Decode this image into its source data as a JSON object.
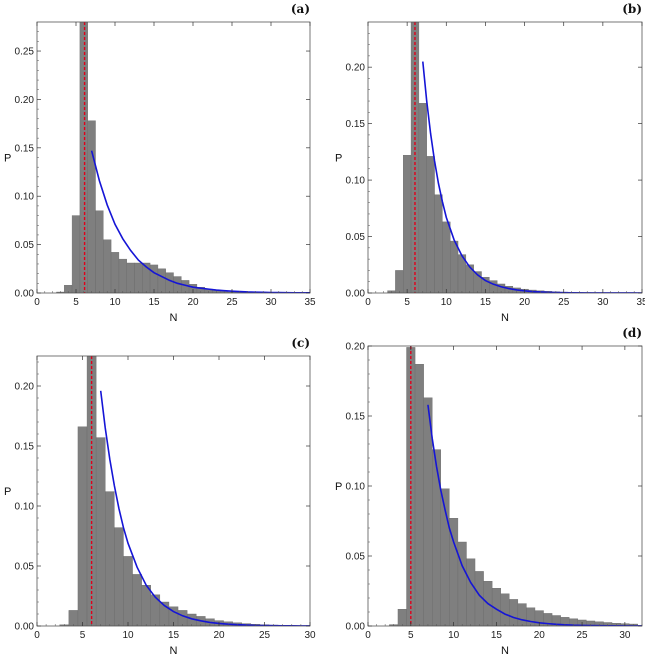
{
  "chart_data": [
    {
      "panel": "(a)",
      "type": "bar",
      "xlabel": "N",
      "ylabel": "P",
      "xlim": [
        0,
        35
      ],
      "ylim": [
        0,
        0.28
      ],
      "xticks": [
        0,
        5,
        10,
        15,
        20,
        25,
        30,
        35
      ],
      "xtick_labels": [
        "0",
        "5",
        "10",
        "15",
        "20",
        "25",
        "30",
        "35"
      ],
      "yticks": [
        0.0,
        0.05,
        0.1,
        0.15,
        0.2,
        0.25
      ],
      "ytick_labels": [
        "0.00",
        "0.05",
        "0.10",
        "0.15",
        "0.20",
        "0.25"
      ],
      "histogram": {
        "bin_width": 1,
        "bin_centers": [
          3,
          4,
          5,
          6,
          7,
          8,
          9,
          10,
          11,
          12,
          13,
          14,
          15,
          16,
          17,
          18,
          19,
          20,
          21,
          22,
          23,
          24,
          25,
          26,
          27,
          28,
          29,
          30,
          31,
          32,
          33,
          34
        ],
        "values": [
          0.001,
          0.008,
          0.08,
          0.28,
          0.178,
          0.085,
          0.055,
          0.042,
          0.035,
          0.031,
          0.031,
          0.031,
          0.029,
          0.025,
          0.021,
          0.017,
          0.013,
          0.009,
          0.006,
          0.004,
          0.003,
          0.002,
          0.001,
          0.001,
          0.0005,
          0.0003,
          0.0002,
          0.0001,
          0.0001,
          0.0,
          0.0,
          0.0
        ]
      },
      "curve": {
        "x": [
          7,
          8,
          9,
          10,
          11,
          12,
          13,
          14,
          15,
          16,
          17,
          18,
          19,
          20,
          21,
          22,
          23,
          24,
          25,
          26,
          27,
          28,
          29,
          30,
          31,
          32,
          33,
          34,
          35
        ],
        "y": [
          0.147,
          0.116,
          0.091,
          0.071,
          0.056,
          0.044,
          0.034,
          0.027,
          0.021,
          0.017,
          0.013,
          0.01,
          0.008,
          0.006,
          0.005,
          0.004,
          0.003,
          0.0024,
          0.0019,
          0.0015,
          0.0011,
          0.0009,
          0.0007,
          0.0005,
          0.0004,
          0.0003,
          0.00025,
          0.0002,
          0.00015
        ],
        "color": "#1515d6"
      },
      "vline": {
        "x": 6.1,
        "color": "#e0001b"
      }
    },
    {
      "panel": "(b)",
      "type": "bar",
      "xlabel": "N",
      "ylabel": "P",
      "xlim": [
        0,
        35
      ],
      "ylim": [
        0,
        0.24
      ],
      "xticks": [
        0,
        5,
        10,
        15,
        20,
        25,
        30,
        35
      ],
      "xtick_labels": [
        "0",
        "5",
        "10",
        "15",
        "20",
        "25",
        "30",
        "35"
      ],
      "yticks": [
        0.0,
        0.05,
        0.1,
        0.15,
        0.2
      ],
      "ytick_labels": [
        "0.00",
        "0.05",
        "0.10",
        "0.15",
        "0.20"
      ],
      "histogram": {
        "bin_width": 1,
        "bin_centers": [
          3,
          4,
          5,
          6,
          7,
          8,
          9,
          10,
          11,
          12,
          13,
          14,
          15,
          16,
          17,
          18,
          19,
          20,
          21,
          22,
          23,
          24,
          25,
          26,
          27,
          28,
          29,
          30,
          31,
          32,
          33,
          34
        ],
        "values": [
          0.002,
          0.02,
          0.122,
          0.24,
          0.168,
          0.121,
          0.087,
          0.063,
          0.046,
          0.034,
          0.025,
          0.019,
          0.014,
          0.011,
          0.008,
          0.006,
          0.0045,
          0.0034,
          0.0026,
          0.002,
          0.0015,
          0.0011,
          0.0008,
          0.0006,
          0.0005,
          0.0004,
          0.0003,
          0.0002,
          0.0002,
          0.0001,
          0.0001,
          0.0001
        ]
      },
      "curve": {
        "x": [
          7,
          7.5,
          8,
          8.5,
          9,
          9.5,
          10,
          11,
          12,
          13,
          14,
          15,
          16,
          17,
          18,
          19,
          20,
          21,
          22,
          23,
          24,
          25,
          26,
          28,
          30,
          32,
          35
        ],
        "y": [
          0.205,
          0.17,
          0.141,
          0.117,
          0.097,
          0.081,
          0.067,
          0.047,
          0.033,
          0.023,
          0.016,
          0.011,
          0.0078,
          0.0055,
          0.0039,
          0.0027,
          0.0019,
          0.0013,
          0.0009,
          0.0006,
          0.0004,
          0.0003,
          0.0002,
          0.0001,
          5e-05,
          3e-05,
          1e-05
        ],
        "color": "#1515d6"
      },
      "vline": {
        "x": 6.0,
        "color": "#e0001b"
      }
    },
    {
      "panel": "(c)",
      "type": "bar",
      "xlabel": "N",
      "ylabel": "P",
      "xlim": [
        0,
        30
      ],
      "ylim": [
        0,
        0.225
      ],
      "xticks": [
        0,
        5,
        10,
        15,
        20,
        25,
        30
      ],
      "xtick_labels": [
        "0",
        "5",
        "10",
        "15",
        "20",
        "25",
        "30"
      ],
      "yticks": [
        0.0,
        0.05,
        0.1,
        0.15,
        0.2
      ],
      "ytick_labels": [
        "0.00",
        "0.05",
        "0.10",
        "0.15",
        "0.20"
      ],
      "histogram": {
        "bin_width": 1,
        "bin_centers": [
          3,
          4,
          5,
          6,
          7,
          8,
          9,
          10,
          11,
          12,
          13,
          14,
          15,
          16,
          17,
          18,
          19,
          20,
          21,
          22,
          23,
          24,
          25,
          26,
          27,
          28,
          29
        ],
        "values": [
          0.001,
          0.013,
          0.166,
          0.225,
          0.157,
          0.112,
          0.082,
          0.058,
          0.043,
          0.034,
          0.026,
          0.02,
          0.016,
          0.013,
          0.01,
          0.008,
          0.006,
          0.0045,
          0.0035,
          0.0027,
          0.002,
          0.0015,
          0.0011,
          0.0008,
          0.0006,
          0.0004,
          0.0003
        ]
      },
      "curve": {
        "x": [
          7,
          7.5,
          8,
          8.5,
          9,
          9.5,
          10,
          11,
          12,
          13,
          14,
          15,
          16,
          17,
          18,
          19,
          20,
          21,
          22,
          23,
          24,
          25,
          26,
          27,
          28,
          29,
          30
        ],
        "y": [
          0.196,
          0.165,
          0.139,
          0.117,
          0.098,
          0.082,
          0.069,
          0.049,
          0.034,
          0.024,
          0.017,
          0.012,
          0.0085,
          0.006,
          0.0043,
          0.003,
          0.0021,
          0.0015,
          0.0011,
          0.0008,
          0.0005,
          0.0004,
          0.0003,
          0.0002,
          0.00015,
          0.0001,
          7e-05
        ],
        "color": "#1515d6"
      },
      "vline": {
        "x": 6.0,
        "color": "#e0001b"
      }
    },
    {
      "panel": "(d)",
      "type": "bar",
      "xlabel": "N",
      "ylabel": "P",
      "xlim": [
        0,
        32
      ],
      "ylim": [
        0,
        0.2
      ],
      "xticks": [
        0,
        5,
        10,
        15,
        20,
        25,
        30
      ],
      "xtick_labels": [
        "0",
        "5",
        "10",
        "15",
        "20",
        "25",
        "30"
      ],
      "yticks": [
        0.0,
        0.05,
        0.1,
        0.15,
        0.2
      ],
      "ytick_labels": [
        "0.00",
        "0.05",
        "0.10",
        "0.15",
        "0.20"
      ],
      "histogram": {
        "bin_width": 1,
        "bin_centers": [
          3,
          4,
          5,
          6,
          7,
          8,
          9,
          10,
          11,
          12,
          13,
          14,
          15,
          16,
          17,
          18,
          19,
          20,
          21,
          22,
          23,
          24,
          25,
          26,
          27,
          28,
          29,
          30,
          31
        ],
        "values": [
          0.001,
          0.012,
          0.199,
          0.187,
          0.163,
          0.126,
          0.098,
          0.077,
          0.06,
          0.048,
          0.039,
          0.032,
          0.027,
          0.023,
          0.019,
          0.016,
          0.013,
          0.011,
          0.009,
          0.0075,
          0.0062,
          0.0052,
          0.0043,
          0.0036,
          0.003,
          0.0025,
          0.002,
          0.0017,
          0.0014
        ]
      },
      "curve": {
        "x": [
          7,
          7.5,
          8,
          8.5,
          9,
          9.5,
          10,
          11,
          12,
          13,
          14,
          15,
          16,
          17,
          18,
          19,
          20,
          21,
          22,
          23,
          24,
          25,
          26,
          27,
          28,
          29,
          30,
          31,
          32
        ],
        "y": [
          0.158,
          0.134,
          0.114,
          0.097,
          0.083,
          0.07,
          0.06,
          0.043,
          0.031,
          0.022,
          0.016,
          0.012,
          0.0085,
          0.0061,
          0.0044,
          0.0032,
          0.0023,
          0.0017,
          0.0012,
          0.0009,
          0.0006,
          0.00045,
          0.00033,
          0.00024,
          0.00017,
          0.00012,
          9e-05,
          6e-05,
          5e-05
        ],
        "color": "#1515d6"
      },
      "vline": {
        "x": 5.0,
        "color": "#e0001b"
      }
    }
  ],
  "style": {
    "bar_fill": "#7f7f7f",
    "bar_stroke": "#6a6a6a",
    "frame_color": "#555555"
  }
}
